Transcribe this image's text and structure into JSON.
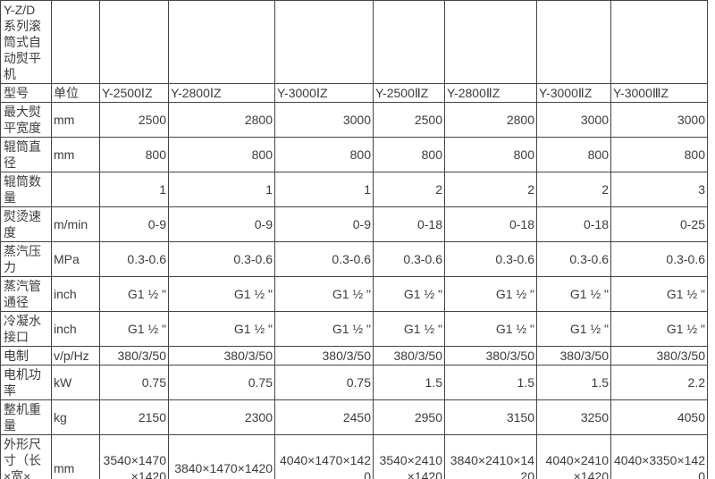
{
  "page": {
    "background_color": "#ffffff",
    "text_color": "#3c3c3c",
    "border_color": "#454545"
  },
  "table": {
    "title_cell": "Y-Z/D 系列滚筒式自动熨平机",
    "header": {
      "model_label": "型号",
      "unit_label": "单位",
      "models": [
        "Y-2500ⅠZ",
        "Y-2800ⅠZ",
        "Y-3000ⅠZ",
        "Y-2500ⅡZ",
        "Y-2800ⅡZ",
        "Y-3000ⅡZ",
        "Y-3000ⅢZ"
      ]
    },
    "rows": [
      {
        "label": "最大熨平宽度",
        "unit": "mm",
        "values": [
          "2500",
          "2800",
          "3000",
          "2500",
          "2800",
          "3000",
          "3000"
        ]
      },
      {
        "label": "辊筒直径",
        "unit": "mm",
        "values": [
          "800",
          "800",
          "800",
          "800",
          "800",
          "800",
          "800"
        ]
      },
      {
        "label": "辊筒数量",
        "unit": "",
        "values": [
          "1",
          "1",
          "1",
          "2",
          "2",
          "2",
          "3"
        ]
      },
      {
        "label": "熨烫速度",
        "unit": "m/min",
        "values": [
          "0-9",
          "0-9",
          "0-9",
          "0-18",
          "0-18",
          "0-18",
          "0-25"
        ]
      },
      {
        "label": "蒸汽压力",
        "unit": "MPa",
        "values": [
          "0.3-0.6",
          "0.3-0.6",
          "0.3-0.6",
          "0.3-0.6",
          "0.3-0.6",
          "0.3-0.6",
          "0.3-0.6"
        ]
      },
      {
        "label": "蒸汽管通径",
        "unit": "inch",
        "values": [
          "G1 ½ \"",
          "G1 ½ \"",
          "G1 ½ \"",
          "G1 ½ \"",
          "G1 ½ \"",
          "G1 ½ \"",
          "G1 ½ \""
        ]
      },
      {
        "label": "冷凝水接口",
        "unit": "inch",
        "values": [
          "G1 ½ \"",
          "G1 ½ \"",
          "G1 ½ \"",
          "G1 ½ \"",
          "G1 ½ \"",
          "G1 ½ \"",
          "G1 ½ \""
        ]
      },
      {
        "label": "电制",
        "unit": "v/p/Hz",
        "values": [
          "380/3/50",
          "380/3/50",
          "380/3/50",
          "380/3/50",
          "380/3/50",
          "380/3/50",
          "380/3/50"
        ]
      },
      {
        "label": "电机功率",
        "unit": "kW",
        "values": [
          "0.75",
          "0.75",
          "0.75",
          "1.5",
          "1.5",
          "1.5",
          "2.2"
        ]
      },
      {
        "label": "整机重量",
        "unit": "kg",
        "values": [
          "2150",
          "2300",
          "2450",
          "2950",
          "3150",
          "3250",
          "4050"
        ]
      },
      {
        "label": "外形尺寸（长×宽×高）",
        "unit": "mm",
        "values": [
          "3540×1470×1420",
          "3840×1470×1420",
          "4040×1470×1420",
          "3540×2410×1420",
          "3840×2410×1420",
          "4040×2410×1420",
          "4040×3350×1420"
        ]
      }
    ]
  }
}
